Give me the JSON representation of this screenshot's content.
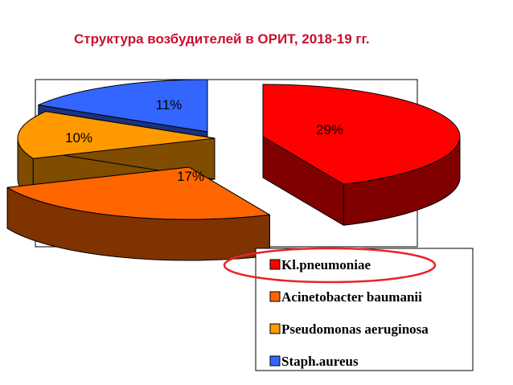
{
  "slide": {
    "title": "Структура возбудителей в ОРИТ, 2018-19 гг."
  },
  "chart_data": {
    "type": "pie",
    "title": "",
    "values": [
      29,
      17,
      10,
      11
    ],
    "labels": [
      "29%",
      "17%",
      "10%",
      "11%"
    ],
    "series": [
      {
        "name": "Kl.pneumoniae",
        "value": 29,
        "color": "#ff0000",
        "side_color": "#800000"
      },
      {
        "name": "Acinetobacter baumanii",
        "value": 17,
        "color": "#ff6600",
        "side_color": "#7f3300"
      },
      {
        "name": "Pseudomonas aeruginosa",
        "value": 10,
        "color": "#ff9900",
        "side_color": "#7f4c00"
      },
      {
        "name": "Staph.aureus",
        "value": 11,
        "color": "#3366ff",
        "side_color": "#1a337f"
      }
    ],
    "legend_position": "bottom-right",
    "highlighted_legend_item": "Kl.pneumoniae",
    "highlight_color": "#e8232a"
  }
}
